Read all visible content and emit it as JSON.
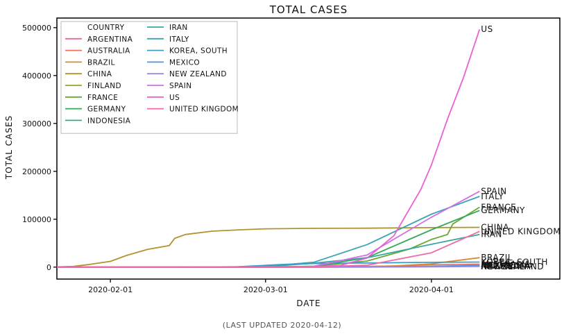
{
  "chart_data": {
    "type": "line",
    "title": "TOTAL CASES",
    "xlabel": "DATE",
    "ylabel": "TOTAL CASES",
    "xlim": [
      "2020-01-22",
      "2020-04-25"
    ],
    "ylim": [
      -25000,
      520000
    ],
    "x_ticks": [
      "2020-02-01",
      "2020-03-01",
      "2020-04-01"
    ],
    "y_ticks": [
      0,
      100000,
      200000,
      300000,
      400000,
      500000
    ],
    "y_tick_labels": [
      "0",
      "100000",
      "200000",
      "300000",
      "400000",
      "500000"
    ],
    "legend": {
      "title": "COUNTRY",
      "position": "upper-left",
      "columns": 2
    },
    "grid": false,
    "series": [
      {
        "name": "ARGENTINA",
        "color": "#f0649b",
        "points": [
          [
            "2020-01-22",
            0
          ],
          [
            "2020-03-03",
            0
          ],
          [
            "2020-03-20",
            128
          ],
          [
            "2020-04-01",
            1054
          ],
          [
            "2020-04-10",
            1975
          ]
        ]
      },
      {
        "name": "AUSTRALIA",
        "color": "#f07060",
        "points": [
          [
            "2020-01-22",
            0
          ],
          [
            "2020-02-01",
            9
          ],
          [
            "2020-03-01",
            25
          ],
          [
            "2020-03-15",
            298
          ],
          [
            "2020-03-25",
            2423
          ],
          [
            "2020-04-01",
            4862
          ],
          [
            "2020-04-10",
            6152
          ]
        ]
      },
      {
        "name": "BRAZIL",
        "color": "#d98a2e",
        "points": [
          [
            "2020-01-22",
            0
          ],
          [
            "2020-02-26",
            1
          ],
          [
            "2020-03-15",
            200
          ],
          [
            "2020-03-25",
            2433
          ],
          [
            "2020-04-01",
            6836
          ],
          [
            "2020-04-10",
            19638
          ]
        ]
      },
      {
        "name": "CHINA",
        "color": "#b1922f",
        "points": [
          [
            "2020-01-22",
            548
          ],
          [
            "2020-01-25",
            1406
          ],
          [
            "2020-01-28",
            5509
          ],
          [
            "2020-02-01",
            11891
          ],
          [
            "2020-02-04",
            24324
          ],
          [
            "2020-02-08",
            37120
          ],
          [
            "2020-02-12",
            45000
          ],
          [
            "2020-02-13",
            59883
          ],
          [
            "2020-02-15",
            68000
          ],
          [
            "2020-02-20",
            75077
          ],
          [
            "2020-02-25",
            77754
          ],
          [
            "2020-03-01",
            79932
          ],
          [
            "2020-03-10",
            80924
          ],
          [
            "2020-03-20",
            81250
          ],
          [
            "2020-04-01",
            82361
          ],
          [
            "2020-04-10",
            82941
          ]
        ]
      },
      {
        "name": "FINLAND",
        "color": "#9aa233",
        "points": [
          [
            "2020-01-22",
            0
          ],
          [
            "2020-01-29",
            1
          ],
          [
            "2020-03-10",
            40
          ],
          [
            "2020-03-20",
            450
          ],
          [
            "2020-04-01",
            1446
          ],
          [
            "2020-04-10",
            2769
          ]
        ]
      },
      {
        "name": "FRANCE",
        "color": "#6aa832",
        "points": [
          [
            "2020-01-22",
            0
          ],
          [
            "2020-01-25",
            3
          ],
          [
            "2020-03-01",
            130
          ],
          [
            "2020-03-10",
            1784
          ],
          [
            "2020-03-20",
            12726
          ],
          [
            "2020-03-28",
            38105
          ],
          [
            "2020-04-01",
            57749
          ],
          [
            "2020-04-04",
            68000
          ],
          [
            "2020-04-05",
            90000
          ],
          [
            "2020-04-10",
            125000
          ]
        ]
      },
      {
        "name": "GERMANY",
        "color": "#35a85a",
        "points": [
          [
            "2020-01-22",
            0
          ],
          [
            "2020-01-28",
            4
          ],
          [
            "2020-02-28",
            79
          ],
          [
            "2020-03-10",
            1457
          ],
          [
            "2020-03-20",
            19848
          ],
          [
            "2020-04-01",
            77872
          ],
          [
            "2020-04-10",
            118235
          ]
        ]
      },
      {
        "name": "INDONESIA",
        "color": "#36a88c",
        "points": [
          [
            "2020-01-22",
            0
          ],
          [
            "2020-03-02",
            2
          ],
          [
            "2020-03-20",
            369
          ],
          [
            "2020-04-01",
            1677
          ],
          [
            "2020-04-10",
            3512
          ]
        ]
      },
      {
        "name": "IRAN",
        "color": "#38a6a0",
        "points": [
          [
            "2020-01-22",
            0
          ],
          [
            "2020-02-19",
            2
          ],
          [
            "2020-03-01",
            978
          ],
          [
            "2020-03-10",
            8042
          ],
          [
            "2020-03-20",
            19644
          ],
          [
            "2020-04-01",
            47593
          ],
          [
            "2020-04-10",
            68192
          ]
        ]
      },
      {
        "name": "ITALY",
        "color": "#39a4b5",
        "points": [
          [
            "2020-01-22",
            0
          ],
          [
            "2020-01-31",
            2
          ],
          [
            "2020-02-22",
            62
          ],
          [
            "2020-03-01",
            1694
          ],
          [
            "2020-03-10",
            10149
          ],
          [
            "2020-03-20",
            47021
          ],
          [
            "2020-04-01",
            110574
          ],
          [
            "2020-04-10",
            147577
          ]
        ]
      },
      {
        "name": "KOREA, SOUTH",
        "color": "#3b9dc9",
        "points": [
          [
            "2020-01-22",
            1
          ],
          [
            "2020-02-01",
            12
          ],
          [
            "2020-02-18",
            31
          ],
          [
            "2020-02-25",
            977
          ],
          [
            "2020-03-01",
            3736
          ],
          [
            "2020-03-05",
            6088
          ],
          [
            "2020-03-10",
            7513
          ],
          [
            "2020-03-20",
            8652
          ],
          [
            "2020-04-01",
            9887
          ],
          [
            "2020-04-10",
            10450
          ]
        ]
      },
      {
        "name": "MEXICO",
        "color": "#5a8fe0",
        "points": [
          [
            "2020-01-22",
            0
          ],
          [
            "2020-02-28",
            1
          ],
          [
            "2020-03-20",
            164
          ],
          [
            "2020-04-01",
            1378
          ],
          [
            "2020-04-10",
            3844
          ]
        ]
      },
      {
        "name": "NEW ZEALAND",
        "color": "#9a88e6",
        "points": [
          [
            "2020-01-22",
            0
          ],
          [
            "2020-02-28",
            1
          ],
          [
            "2020-03-20",
            39
          ],
          [
            "2020-04-01",
            708
          ],
          [
            "2020-04-10",
            1283
          ]
        ]
      },
      {
        "name": "SPAIN",
        "color": "#d36ee6",
        "points": [
          [
            "2020-01-22",
            0
          ],
          [
            "2020-02-01",
            1
          ],
          [
            "2020-03-01",
            84
          ],
          [
            "2020-03-10",
            1695
          ],
          [
            "2020-03-20",
            25374
          ],
          [
            "2020-04-01",
            104118
          ],
          [
            "2020-04-10",
            158273
          ]
        ]
      },
      {
        "name": "US",
        "color": "#ec5fd2",
        "points": [
          [
            "2020-01-22",
            1
          ],
          [
            "2020-03-01",
            75
          ],
          [
            "2020-03-10",
            959
          ],
          [
            "2020-03-15",
            3499
          ],
          [
            "2020-03-20",
            19100
          ],
          [
            "2020-03-25",
            65778
          ],
          [
            "2020-03-30",
            161831
          ],
          [
            "2020-04-01",
            213372
          ],
          [
            "2020-04-04",
            308850
          ],
          [
            "2020-04-07",
            396223
          ],
          [
            "2020-04-10",
            496535
          ]
        ]
      },
      {
        "name": "UNITED KINGDOM",
        "color": "#f06aa8",
        "points": [
          [
            "2020-01-22",
            0
          ],
          [
            "2020-01-31",
            2
          ],
          [
            "2020-03-01",
            36
          ],
          [
            "2020-03-10",
            384
          ],
          [
            "2020-03-20",
            4014
          ],
          [
            "2020-04-01",
            29865
          ],
          [
            "2020-04-10",
            74605
          ]
        ]
      }
    ],
    "end_labels": [
      {
        "series": "US",
        "text": "US"
      },
      {
        "series": "SPAIN",
        "text": "SPAIN"
      },
      {
        "series": "ITALY",
        "text": "ITALY"
      },
      {
        "series": "FRANCE",
        "text": "FRANCE"
      },
      {
        "series": "GERMANY",
        "text": "GERMANY"
      },
      {
        "series": "CHINA",
        "text": "CHINA"
      },
      {
        "series": "UNITED KINGDOM",
        "text": "UNITED KINGDOM"
      },
      {
        "series": "IRAN",
        "text": "IRAN"
      },
      {
        "series": "BRAZIL",
        "text": "BRAZIL"
      },
      {
        "series": "KOREA, SOUTH",
        "text": "KOREA, SOUTH"
      },
      {
        "series": "AUSTRALIA",
        "text": "AUSTRALIA"
      },
      {
        "series": "MEXICO",
        "text": "MEXICO"
      },
      {
        "series": "INDONESIA",
        "text": "INDONESIA"
      },
      {
        "series": "FINLAND",
        "text": "FINLAND"
      },
      {
        "series": "ARGENTINA",
        "text": "ARGENTINA"
      },
      {
        "series": "NEW ZEALAND",
        "text": "NEWZEALAND"
      }
    ]
  },
  "caption": "(LAST UPDATED 2020-04-12)"
}
